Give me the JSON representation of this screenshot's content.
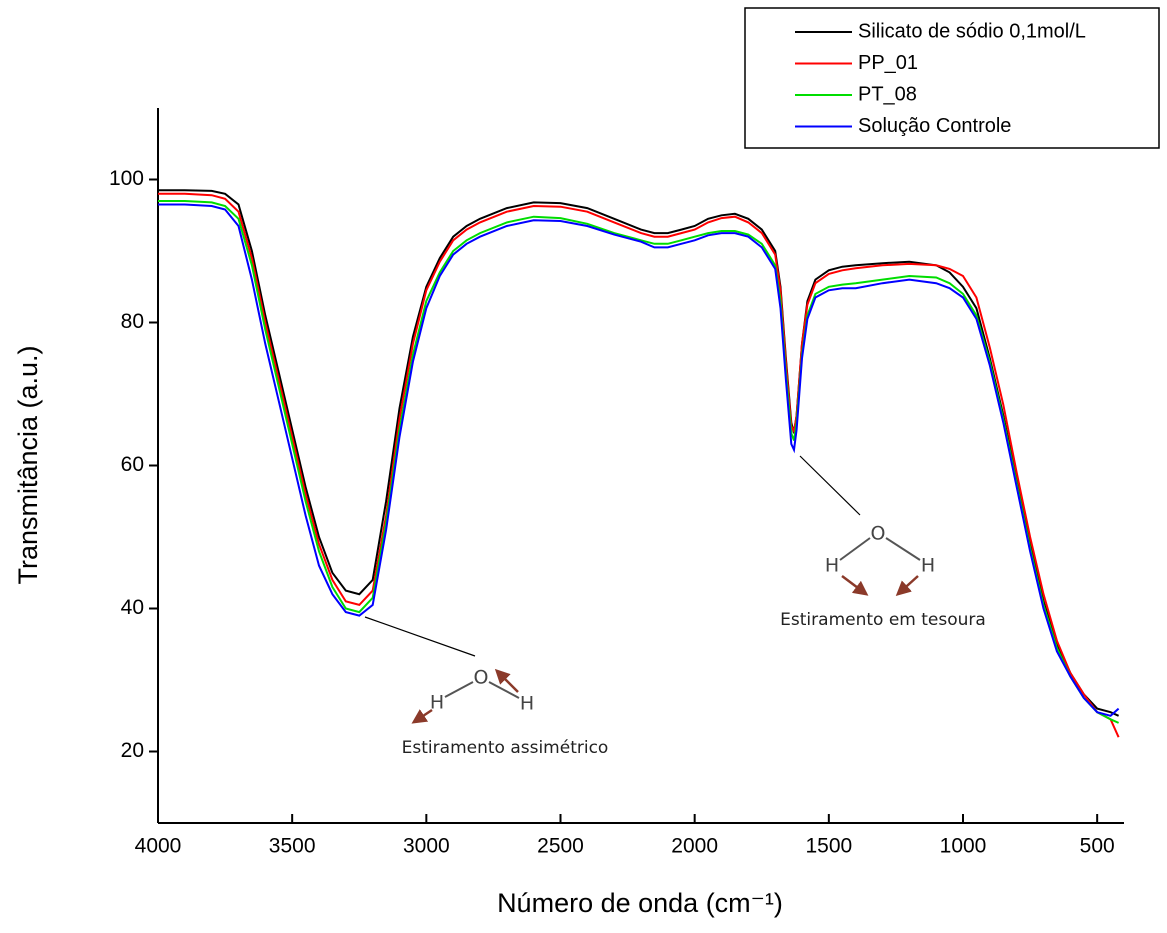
{
  "chart_data": {
    "type": "line",
    "x_label": "Número de onda (cm⁻¹)",
    "y_label": "Transmitância (a.u.)",
    "xlim": [
      4000,
      400
    ],
    "ylim": [
      10,
      110
    ],
    "xticks": [
      4000,
      3500,
      3000,
      2500,
      2000,
      1500,
      1000,
      500
    ],
    "yticks": [
      20,
      40,
      60,
      80,
      100
    ],
    "grid": false,
    "legend_loc": "upper right",
    "x": [
      4000,
      3900,
      3800,
      3750,
      3700,
      3650,
      3600,
      3550,
      3500,
      3450,
      3400,
      3350,
      3300,
      3250,
      3200,
      3150,
      3100,
      3050,
      3000,
      2950,
      2900,
      2850,
      2800,
      2700,
      2600,
      2500,
      2400,
      2300,
      2200,
      2150,
      2100,
      2050,
      2000,
      1950,
      1900,
      1850,
      1800,
      1750,
      1700,
      1680,
      1660,
      1640,
      1630,
      1620,
      1600,
      1580,
      1550,
      1500,
      1450,
      1400,
      1300,
      1200,
      1100,
      1050,
      1000,
      950,
      900,
      850,
      800,
      750,
      700,
      650,
      600,
      550,
      500,
      450,
      420
    ],
    "series": [
      {
        "name": "Silicato de sódio 0,1mol/L",
        "color": "#000000",
        "values": [
          98.5,
          98.5,
          98.4,
          98,
          96.5,
          90,
          81,
          73,
          65,
          57,
          50,
          45,
          42.5,
          42,
          44,
          55,
          68,
          78,
          85,
          89,
          92,
          93.5,
          94.5,
          96,
          96.8,
          96.7,
          96,
          94.5,
          93,
          92.5,
          92.5,
          93,
          93.5,
          94.5,
          95,
          95.2,
          94.5,
          93,
          90,
          85,
          75,
          66,
          64.5,
          67,
          77,
          83,
          86,
          87.3,
          87.8,
          88,
          88.3,
          88.5,
          88,
          87,
          85,
          82,
          75,
          67,
          58,
          49,
          41,
          35,
          31,
          28,
          26,
          25.5,
          25
        ]
      },
      {
        "name": "PP_01",
        "color": "#ff0000",
        "values": [
          98,
          98,
          97.8,
          97.3,
          95.5,
          89,
          80,
          72,
          64,
          56,
          49,
          44,
          41,
          40.5,
          42.5,
          53,
          66.5,
          77,
          84.5,
          88.5,
          91.5,
          93,
          94,
          95.5,
          96.3,
          96.2,
          95.5,
          94,
          92.5,
          92,
          92,
          92.5,
          93,
          94,
          94.6,
          94.8,
          94,
          92.5,
          89.5,
          84.5,
          74.5,
          65.5,
          64.8,
          67,
          77,
          82.5,
          85.5,
          86.8,
          87.3,
          87.6,
          88,
          88.2,
          88,
          87.5,
          86.5,
          83.5,
          76.5,
          68.5,
          59,
          50,
          42,
          35.5,
          31,
          28,
          25.5,
          24.5,
          22
        ]
      },
      {
        "name": "PT_08",
        "color": "#00dd00",
        "values": [
          97,
          97,
          96.8,
          96.3,
          94.5,
          88,
          79,
          71,
          63,
          55,
          48,
          43,
          40,
          39.5,
          41.5,
          52,
          65,
          75.5,
          83,
          87,
          90,
          91.5,
          92.5,
          94,
          94.8,
          94.6,
          93.8,
          92.5,
          91.5,
          91,
          91,
          91.5,
          92,
          92.5,
          92.8,
          92.8,
          92.3,
          91,
          88,
          83,
          73,
          64.5,
          63.5,
          66,
          75.5,
          81,
          84,
          85,
          85.3,
          85.5,
          86,
          86.5,
          86.3,
          85.5,
          84,
          81,
          74.5,
          66.5,
          57.5,
          48.5,
          40.5,
          34.5,
          30.5,
          27.5,
          25.5,
          24.5,
          24
        ]
      },
      {
        "name": "Solução Controle",
        "color": "#0000ff",
        "values": [
          96.5,
          96.5,
          96.3,
          95.8,
          93.5,
          86,
          77,
          69,
          61,
          53,
          46,
          42,
          39.5,
          39,
          40.5,
          51,
          64,
          74.5,
          82,
          86.5,
          89.5,
          91,
          92,
          93.5,
          94.3,
          94.2,
          93.5,
          92.3,
          91.3,
          90.5,
          90.5,
          91,
          91.5,
          92.2,
          92.5,
          92.5,
          92,
          90.5,
          87.5,
          82,
          72,
          63,
          62.2,
          65,
          75,
          80.5,
          83.5,
          84.5,
          84.8,
          84.8,
          85.5,
          86,
          85.5,
          84.8,
          83.5,
          80.5,
          74,
          66,
          57,
          48,
          40,
          34,
          30.5,
          27.5,
          25.5,
          25,
          26
        ]
      }
    ],
    "annotations": [
      {
        "text": "Estiramento assimétrico",
        "atoms": [
          "H",
          "O",
          "H"
        ]
      },
      {
        "text": "Estiramento em tesoura",
        "atoms": [
          "H",
          "O",
          "H"
        ]
      }
    ]
  }
}
